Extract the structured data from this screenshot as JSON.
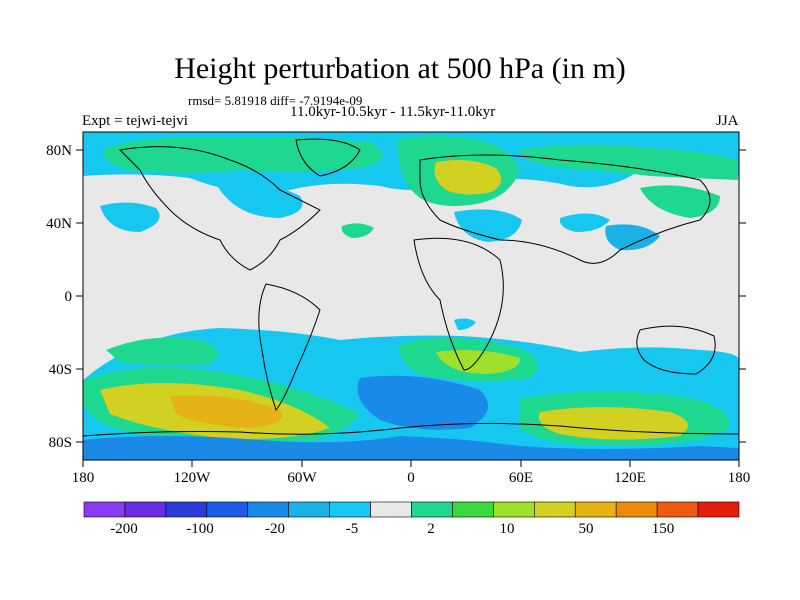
{
  "figure": {
    "title": "Height perturbation at 500 hPa (in m)",
    "stats": "rmsd= 5.81918 diff= -7.9194e-09",
    "period": "11.0kyr-10.5kyr - 11.5kyr-11.0kyr",
    "experiment": "Expt = tejwi-tejvi",
    "season": "JJA"
  },
  "map": {
    "lat_ticks": [
      "80N",
      "40N",
      "0",
      "40S",
      "80S"
    ],
    "lon_ticks": [
      "180",
      "120W",
      "60W",
      "0",
      "60E",
      "120E",
      "180"
    ]
  },
  "colorbar": {
    "labels": [
      "-200",
      "-100",
      "-20",
      "-5",
      "2",
      "10",
      "50",
      "150"
    ],
    "colors": [
      "#8c3cf0",
      "#6a2de0",
      "#2a3cd8",
      "#1c5ce6",
      "#1a8ae8",
      "#1ab2e6",
      "#16c8f0",
      "#e8e8e8",
      "#1ed890",
      "#3ad840",
      "#9ee02a",
      "#d2d020",
      "#e6b214",
      "#ec8a0e",
      "#ee5a12",
      "#e81c0c"
    ],
    "neutral_color": "#e8e8e8"
  }
}
